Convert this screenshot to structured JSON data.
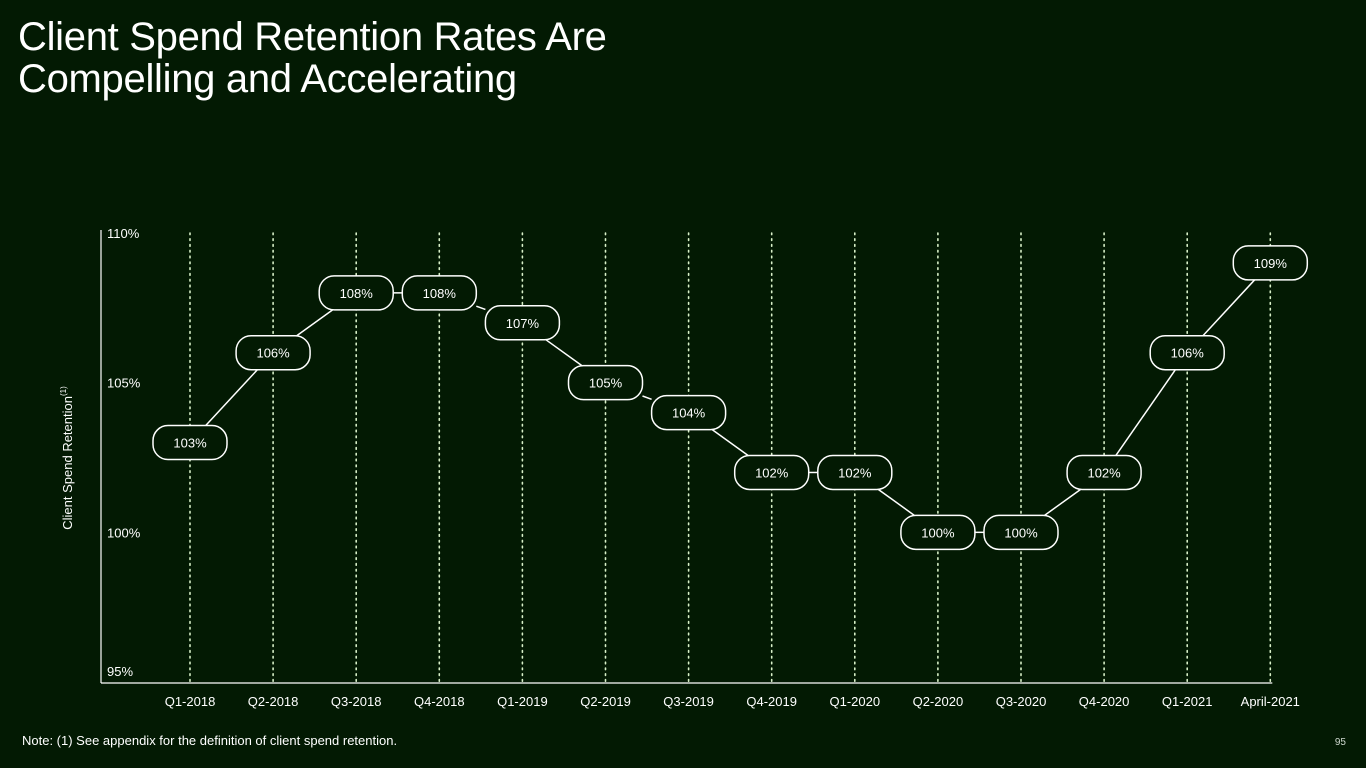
{
  "title": {
    "line1": "Client Spend Retention Rates Are",
    "line2": "Compelling and Accelerating"
  },
  "note": "Note: (1) See appendix for the definition of client spend retention.",
  "page_number": "95",
  "colors": {
    "background": "#031a03",
    "text": "#ffffff",
    "line": "#ffffff",
    "gridline": "#d8f0c8"
  },
  "chart_data": {
    "type": "line",
    "title": "",
    "ylabel": "Client Spend Retention",
    "ylabel_superscript": "(1)",
    "xlabel": "",
    "ylim": [
      95,
      110
    ],
    "yticks": [
      95,
      100,
      105,
      110
    ],
    "ytick_labels": [
      "95%",
      "100%",
      "105%",
      "110%"
    ],
    "grid": "vertical dotted",
    "categories": [
      "Q1-2018",
      "Q2-2018",
      "Q3-2018",
      "Q4-2018",
      "Q1-2019",
      "Q2-2019",
      "Q3-2019",
      "Q4-2019",
      "Q1-2020",
      "Q2-2020",
      "Q3-2020",
      "Q4-2020",
      "Q1-2021",
      "April-2021"
    ],
    "values": [
      103,
      106,
      108,
      108,
      107,
      105,
      104,
      102,
      102,
      100,
      100,
      102,
      106,
      109
    ],
    "data_labels": [
      "103%",
      "106%",
      "108%",
      "108%",
      "107%",
      "105%",
      "104%",
      "102%",
      "102%",
      "100%",
      "100%",
      "102%",
      "106%",
      "109%"
    ],
    "label_format": "rounded-box"
  }
}
